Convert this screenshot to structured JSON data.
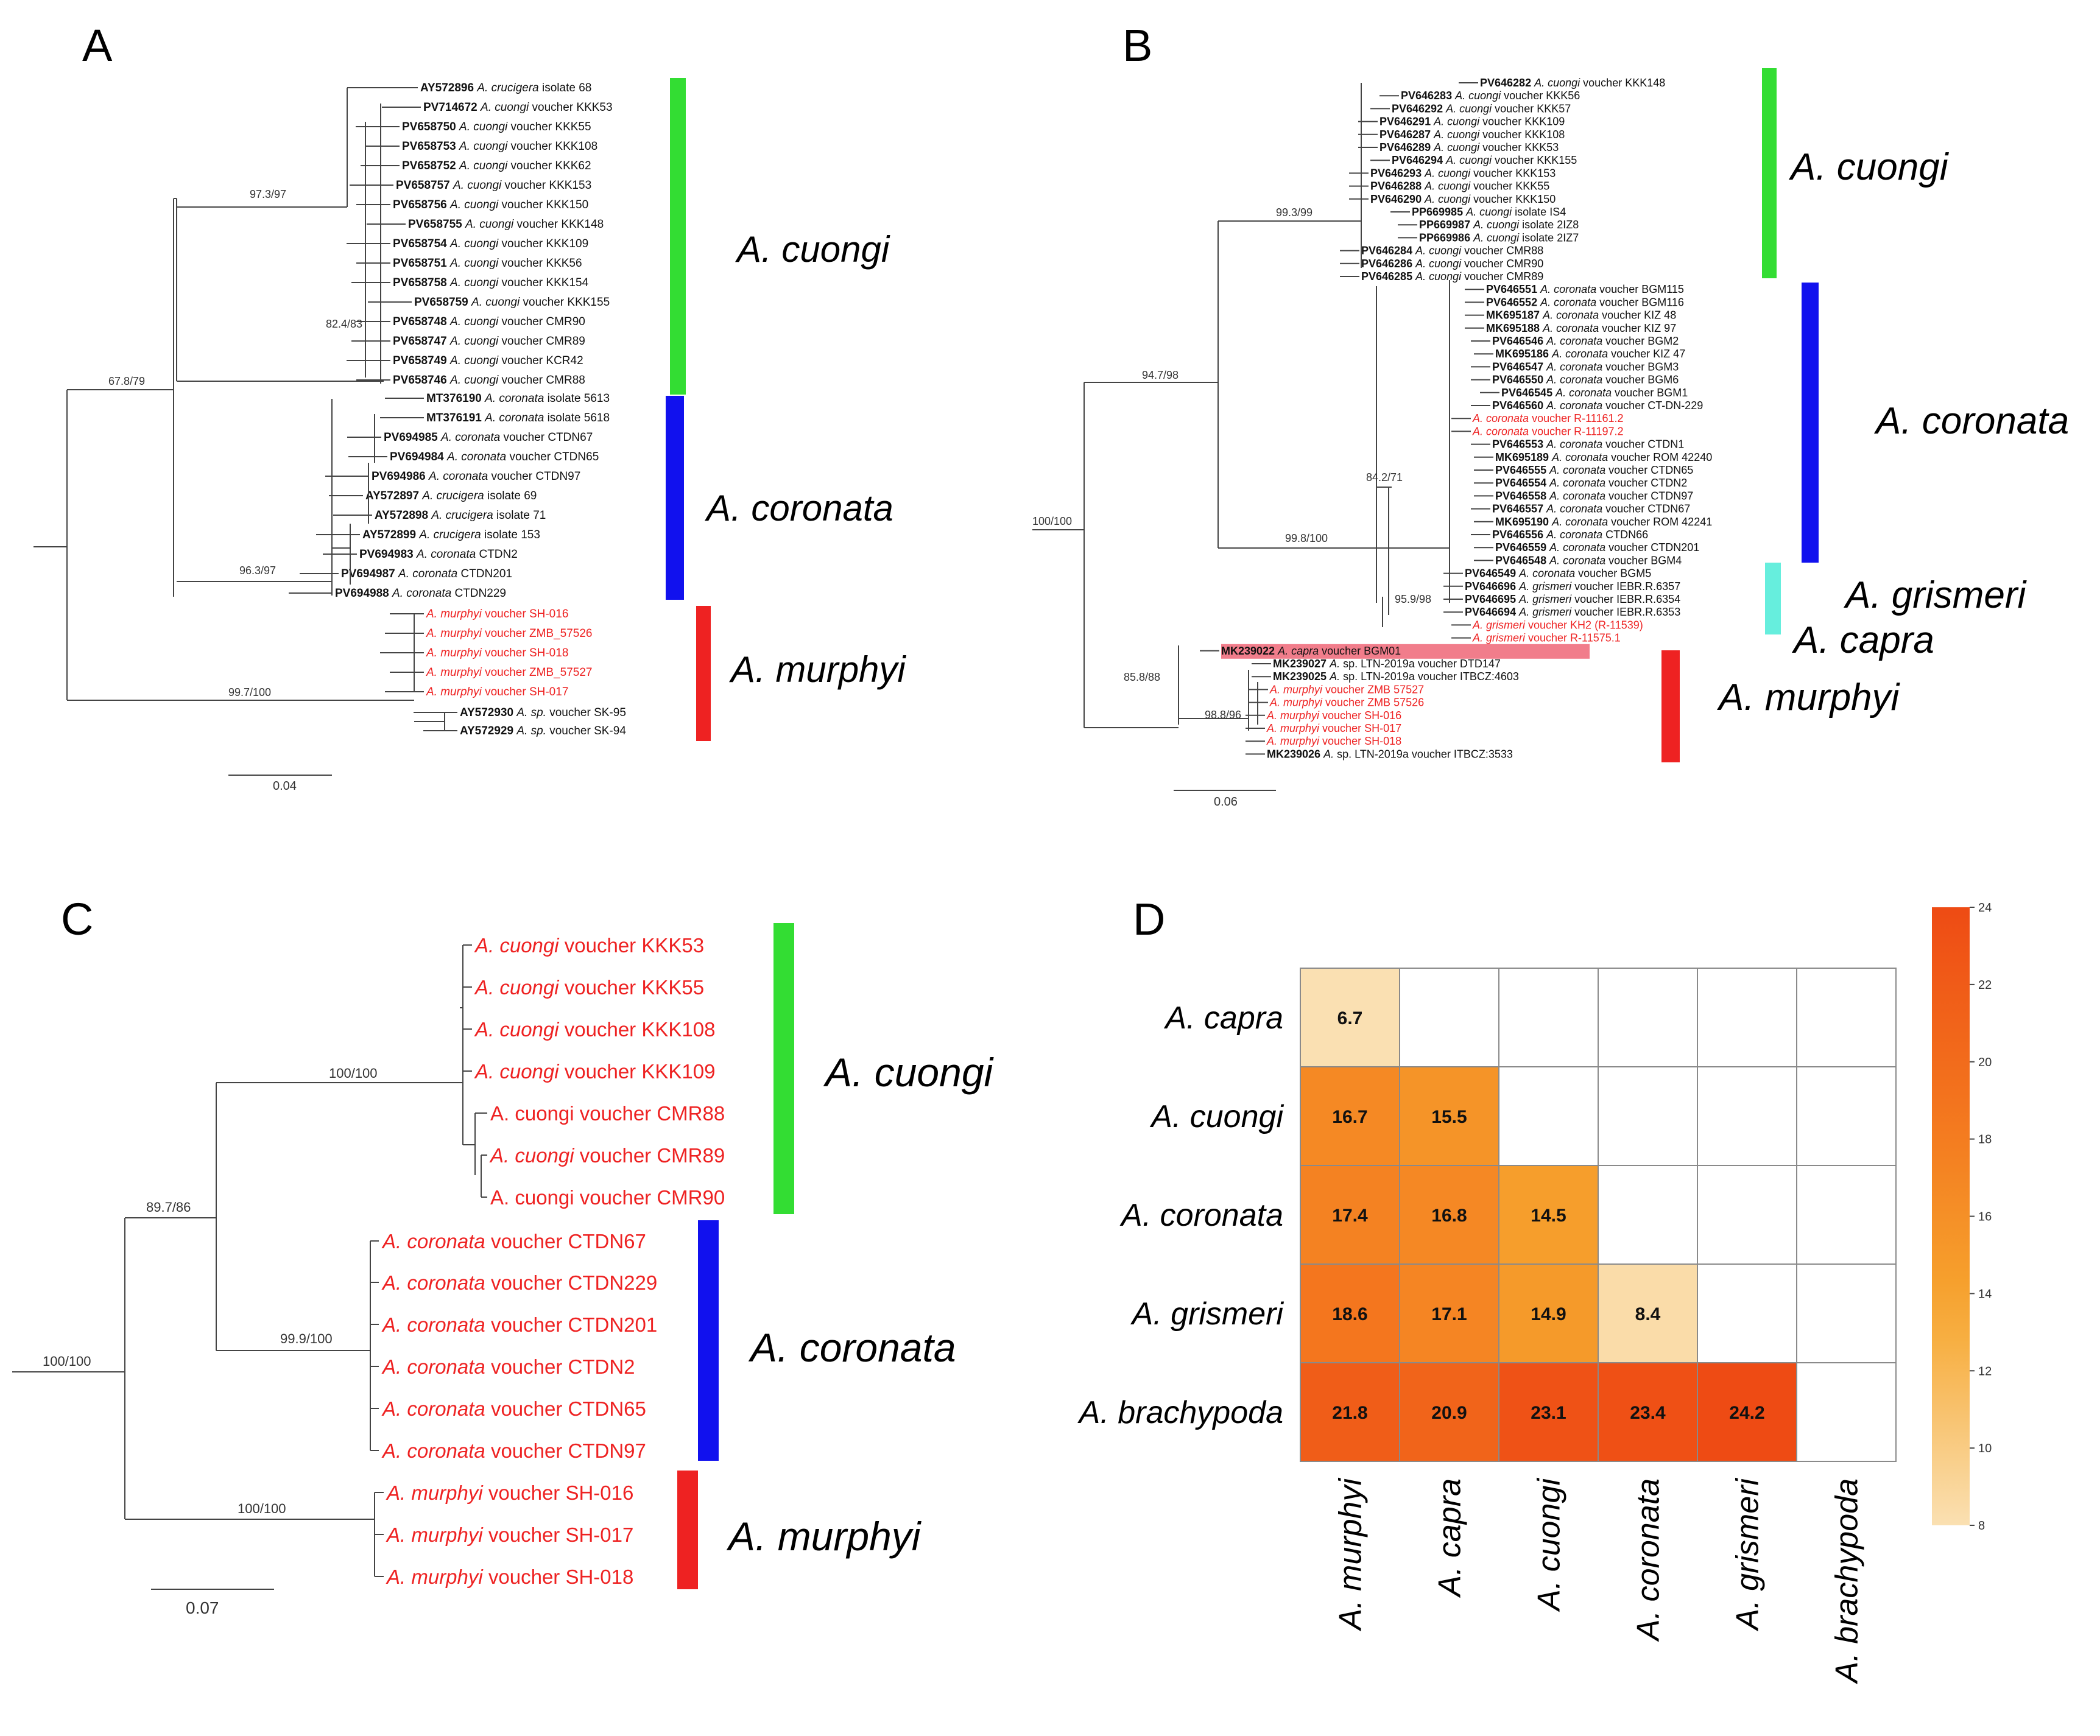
{
  "panels": {
    "A": {
      "label": "A",
      "tips": [
        {
          "acc": "AY572896",
          "sp": "A. crucigera",
          "rest": " isolate 68",
          "red": false
        },
        {
          "acc": "PV714672",
          "sp": "A. cuongi",
          "rest": " voucher KKK53",
          "red": false
        },
        {
          "acc": "PV658750",
          "sp": "A. cuongi",
          "rest": " voucher KKK55",
          "red": false
        },
        {
          "acc": "PV658753",
          "sp": "A. cuongi",
          "rest": " voucher KKK108",
          "red": false
        },
        {
          "acc": "PV658752",
          "sp": "A. cuongi",
          "rest": " voucher KKK62",
          "red": false
        },
        {
          "acc": "PV658757",
          "sp": "A. cuongi",
          "rest": " voucher KKK153",
          "red": false
        },
        {
          "acc": "PV658756",
          "sp": "A. cuongi",
          "rest": " voucher KKK150",
          "red": false
        },
        {
          "acc": "PV658755",
          "sp": "A. cuongi",
          "rest": " voucher KKK148",
          "red": false
        },
        {
          "acc": "PV658754",
          "sp": "A. cuongi",
          "rest": " voucher KKK109",
          "red": false
        },
        {
          "acc": "PV658751",
          "sp": "A. cuongi",
          "rest": " voucher KKK56",
          "red": false
        },
        {
          "acc": "PV658758",
          "sp": "A. cuongi",
          "rest": " voucher KKK154",
          "red": false
        },
        {
          "acc": "PV658759",
          "sp": "A. cuongi",
          "rest": " voucher KKK155",
          "red": false
        },
        {
          "acc": "PV658748",
          "sp": "A. cuongi",
          "rest": " voucher CMR90",
          "red": false
        },
        {
          "acc": "PV658747",
          "sp": "A. cuongi",
          "rest": " voucher CMR89",
          "red": false
        },
        {
          "acc": "PV658749",
          "sp": "A. cuongi",
          "rest": " voucher KCR42",
          "red": false
        },
        {
          "acc": "PV658746",
          "sp": "A. cuongi",
          "rest": " voucher CMR88",
          "red": false
        },
        {
          "acc": "MT376190",
          "sp": "A. coronata",
          "rest": " isolate 5613",
          "red": false
        },
        {
          "acc": "MT376191",
          "sp": "A. coronata",
          "rest": " isolate 5618",
          "red": false
        },
        {
          "acc": "PV694985",
          "sp": "A. coronata",
          "rest": " voucher CTDN67",
          "red": false
        },
        {
          "acc": "PV694984",
          "sp": "A. coronata",
          "rest": " voucher CTDN65",
          "red": false
        },
        {
          "acc": "PV694986",
          "sp": "A. coronata",
          "rest": " voucher CTDN97",
          "red": false
        },
        {
          "acc": "AY572897",
          "sp": "A. crucigera",
          "rest": " isolate 69",
          "red": false
        },
        {
          "acc": "AY572898",
          "sp": "A. crucigera",
          "rest": " isolate 71",
          "red": false
        },
        {
          "acc": "AY572899",
          "sp": "A. crucigera",
          "rest": " isolate 153",
          "red": false
        },
        {
          "acc": "PV694983",
          "sp": "A. coronata",
          "rest": " CTDN2",
          "red": false
        },
        {
          "acc": "PV694987",
          "sp": "A. coronata",
          "rest": " CTDN201",
          "red": false
        },
        {
          "acc": "PV694988",
          "sp": "A. coronata",
          "rest": " CTDN229",
          "red": false
        },
        {
          "acc": "",
          "sp": "A. murphyi",
          "rest": " voucher SH-016",
          "red": true
        },
        {
          "acc": "",
          "sp": "A. murphyi",
          "rest": " voucher ZMB_57526",
          "red": true
        },
        {
          "acc": "",
          "sp": "A. murphyi",
          "rest": " voucher SH-018",
          "red": true
        },
        {
          "acc": "",
          "sp": "A. murphyi",
          "rest": " voucher ZMB_57527",
          "red": true
        },
        {
          "acc": "",
          "sp": "A. murphyi",
          "rest": " voucher SH-017",
          "red": true
        },
        {
          "acc": "AY572930",
          "sp": "A. sp.",
          "rest": " voucher SK-95",
          "red": false
        },
        {
          "acc": "AY572929",
          "sp": "A. sp.",
          "rest": " voucher SK-94",
          "red": false
        }
      ],
      "supports": [
        "97.3/97",
        "82.4/83",
        "67.8/79",
        "96.3/97",
        "99.7/100"
      ],
      "clades": [
        "A. cuongi",
        "A. coronata",
        "A. murphyi"
      ],
      "scale": "0.04"
    },
    "B": {
      "label": "B",
      "tips": [
        {
          "acc": "PV646282",
          "sp": "A. cuongi",
          "rest": "  voucher KKK148",
          "red": false
        },
        {
          "acc": "PV646283",
          "sp": "A. cuongi",
          "rest": " voucher KKK56",
          "red": false
        },
        {
          "acc": "PV646292",
          "sp": "A. cuongi",
          "rest": " voucher KKK57",
          "red": false
        },
        {
          "acc": "PV646291",
          "sp": "A. cuongi",
          "rest": " voucher KKK109",
          "red": false
        },
        {
          "acc": "PV646287",
          "sp": "A. cuongi",
          "rest": " voucher KKK108",
          "red": false
        },
        {
          "acc": "PV646289",
          "sp": "A. cuongi",
          "rest": " voucher KKK53",
          "red": false
        },
        {
          "acc": "PV646294",
          "sp": "A. cuongi",
          "rest": " voucher KKK155",
          "red": false
        },
        {
          "acc": "PV646293",
          "sp": "A. cuongi",
          "rest": " voucher KKK153",
          "red": false
        },
        {
          "acc": "PV646288",
          "sp": "A. cuongi",
          "rest": " voucher KKK55",
          "red": false
        },
        {
          "acc": "PV646290",
          "sp": "A. cuongi",
          "rest": " voucher KKK150",
          "red": false
        },
        {
          "acc": "PP669985",
          "sp": "A. cuongi",
          "rest": " isolate IS4",
          "red": false
        },
        {
          "acc": "PP669987",
          "sp": "A. cuongi",
          "rest": " isolate 2IZ8",
          "red": false
        },
        {
          "acc": "PP669986",
          "sp": "A. cuongi",
          "rest": " isolate 2IZ7",
          "red": false
        },
        {
          "acc": "PV646284",
          "sp": "A. cuongi",
          "rest": " voucher CMR88",
          "red": false
        },
        {
          "acc": "PV646286",
          "sp": "A. cuongi",
          "rest": " voucher CMR90",
          "red": false
        },
        {
          "acc": "PV646285",
          "sp": "A. cuongi",
          "rest": " voucher CMR89",
          "red": false
        },
        {
          "acc": "PV646551",
          "sp": "A. coronata",
          "rest": " voucher BGM115",
          "red": false
        },
        {
          "acc": "PV646552",
          "sp": "A. coronata",
          "rest": " voucher BGM116",
          "red": false
        },
        {
          "acc": "MK695187",
          "sp": "A. coronata",
          "rest": " voucher KIZ 48",
          "red": false
        },
        {
          "acc": "MK695188",
          "sp": "A. coronata",
          "rest": " voucher KIZ 97",
          "red": false
        },
        {
          "acc": "PV646546",
          "sp": "A. coronata",
          "rest": " voucher BGM2",
          "red": false
        },
        {
          "acc": "MK695186",
          "sp": "A. coronata",
          "rest": " voucher KIZ 47",
          "red": false
        },
        {
          "acc": "PV646547",
          "sp": "A. coronata",
          "rest": " voucher BGM3",
          "red": false
        },
        {
          "acc": "PV646550",
          "sp": "A. coronata",
          "rest": " voucher BGM6",
          "red": false
        },
        {
          "acc": "PV646545",
          "sp": "A. coronata",
          "rest": " voucher BGM1",
          "red": false
        },
        {
          "acc": "PV646560",
          "sp": "A. coronata",
          "rest": " voucher CT-DN-229",
          "red": false
        },
        {
          "acc": "",
          "sp": "A. coronata",
          "rest": " voucher R-11161.2",
          "red": true
        },
        {
          "acc": "",
          "sp": "A. coronata",
          "rest": " voucher R-11197.2",
          "red": true
        },
        {
          "acc": "PV646553",
          "sp": "A. coronata",
          "rest": " voucher CTDN1",
          "red": false
        },
        {
          "acc": "MK695189",
          "sp": "A. coronata",
          "rest": " voucher ROM 42240",
          "red": false
        },
        {
          "acc": "PV646555",
          "sp": "A. coronata",
          "rest": " voucher CTDN65",
          "red": false
        },
        {
          "acc": "PV646554",
          "sp": "A. coronata",
          "rest": " voucher CTDN2",
          "red": false
        },
        {
          "acc": "PV646558",
          "sp": "A. coronata",
          "rest": " voucher CTDN97",
          "red": false
        },
        {
          "acc": "PV646557",
          "sp": "A. coronata",
          "rest": " voucher CTDN67",
          "red": false
        },
        {
          "acc": "MK695190",
          "sp": "A. coronata",
          "rest": " voucher ROM 42241",
          "red": false
        },
        {
          "acc": "PV646556",
          "sp": "A. coronata",
          "rest": " CTDN66",
          "red": false
        },
        {
          "acc": "PV646559",
          "sp": "A. coronata",
          "rest": " voucher CTDN201",
          "red": false
        },
        {
          "acc": "PV646548",
          "sp": "A. coronata",
          "rest": " voucher BGM4",
          "red": false
        },
        {
          "acc": "PV646549",
          "sp": "A. coronata",
          "rest": " voucher BGM5",
          "red": false
        },
        {
          "acc": "PV646696",
          "sp": "A. grismeri",
          "rest": " voucher IEBR.R.6357",
          "red": false
        },
        {
          "acc": "PV646695",
          "sp": "A. grismeri",
          "rest": " voucher IEBR.R.6354",
          "red": false
        },
        {
          "acc": "PV646694",
          "sp": "A. grismeri",
          "rest": " voucher IEBR.R.6353",
          "red": false
        },
        {
          "acc": "",
          "sp": "A. grismeri",
          "rest": " voucher KH2 (R-11539)",
          "red": true
        },
        {
          "acc": "",
          "sp": "A. grismeri",
          "rest": " voucher R-11575.1",
          "red": true
        },
        {
          "acc": "MK239022",
          "sp": "A. capra",
          "rest": " voucher BGM01",
          "red": false,
          "hl": true
        },
        {
          "acc": "MK239027",
          "sp": "A.",
          "rest": " sp. LTN-2019a voucher DTD147",
          "red": false
        },
        {
          "acc": "MK239025",
          "sp": "A.",
          "rest": " sp. LTN-2019a voucher ITBCZ:4603",
          "red": false
        },
        {
          "acc": "",
          "sp": "A. murphyi",
          "rest": " voucher ZMB 57527",
          "red": true
        },
        {
          "acc": "",
          "sp": "A. murphyi",
          "rest": " voucher ZMB 57526",
          "red": true
        },
        {
          "acc": "",
          "sp": "A. murphyi",
          "rest": " voucher SH-016",
          "red": true
        },
        {
          "acc": "",
          "sp": "A. murphyi",
          "rest": " voucher SH-017",
          "red": true
        },
        {
          "acc": "",
          "sp": "A. murphyi",
          "rest": " voucher SH-018",
          "red": true
        },
        {
          "acc": "MK239026",
          "sp": "A.",
          "rest": " sp. LTN-2019a voucher ITBCZ:3533",
          "red": false
        }
      ],
      "supports": [
        "99.3/99",
        "94.7/98",
        "100/100",
        "84.2/71",
        "99.8/100",
        "95.9/98",
        "85.8/88",
        "98.8/96"
      ],
      "clades": [
        "A. cuongi",
        "A. coronata",
        "A. grismeri",
        "A. capra",
        "A. murphyi"
      ],
      "scale": "0.06"
    },
    "C": {
      "label": "C",
      "tips": [
        {
          "sp": "A. cuongi",
          "rest": " voucher KKK53",
          "ital": true
        },
        {
          "sp": "A. cuongi",
          "rest": " voucher KKK55",
          "ital": true
        },
        {
          "sp": "A. cuongi",
          "rest": " voucher KKK108",
          "ital": true
        },
        {
          "sp": "A. cuongi",
          "rest": " voucher KKK109",
          "ital": true
        },
        {
          "sp": "A. cuongi",
          "rest": " voucher CMR88",
          "ital": false
        },
        {
          "sp": "A. cuongi",
          "rest": " voucher CMR89",
          "ital": true
        },
        {
          "sp": "A. cuongi",
          "rest": " voucher CMR90",
          "ital": false
        },
        {
          "sp": "A. coronata",
          "rest": " voucher CTDN67",
          "ital": true
        },
        {
          "sp": "A. coronata",
          "rest": " voucher CTDN229",
          "ital": true
        },
        {
          "sp": "A. coronata",
          "rest": " voucher CTDN201",
          "ital": true
        },
        {
          "sp": "A. coronata",
          "rest": " voucher CTDN2",
          "ital": true
        },
        {
          "sp": "A. coronata",
          "rest": " voucher CTDN65",
          "ital": true
        },
        {
          "sp": "A. coronata",
          "rest": " voucher CTDN97",
          "ital": true
        },
        {
          "sp": "A. murphyi",
          "rest": " voucher SH-016",
          "ital": true
        },
        {
          "sp": "A. murphyi",
          "rest": " voucher SH-017",
          "ital": true
        },
        {
          "sp": "A. murphyi",
          "rest": " voucher SH-018",
          "ital": true
        }
      ],
      "supports": [
        "100/100",
        "89.7/86",
        "99.9/100",
        "100/100",
        "100/100"
      ],
      "clades": [
        "A. cuongi",
        "A. coronata",
        "A. murphyi"
      ],
      "scale": "0.07"
    },
    "D": {
      "label": "D",
      "rows": [
        "A. capra",
        "A. cuongi",
        "A. coronata",
        "A. grismeri",
        "A. brachypoda"
      ],
      "cols": [
        "A. murphyi",
        "A. capra",
        "A. cuongi",
        "A. coronata",
        "A. grismeri",
        "A. brachypoda"
      ],
      "colorbar_ticks": [
        "24",
        "22",
        "20",
        "18",
        "16",
        "14",
        "12",
        "10",
        "8"
      ]
    }
  },
  "colors": {
    "cuongi": "#33dd33",
    "coronata": "#1111ee",
    "murphyi": "#ee2222",
    "grismeri": "#66eedd",
    "red_text": "#ee2222",
    "capra_highlight": "#ee6677"
  },
  "chart_data": {
    "type": "heatmap",
    "rows": [
      "A. capra",
      "A. cuongi",
      "A. coronata",
      "A. grismeri",
      "A. brachypoda"
    ],
    "cols": [
      "A. murphyi",
      "A. capra",
      "A. cuongi",
      "A. coronata",
      "A. grismeri",
      "A. brachypoda"
    ],
    "values": [
      [
        6.7,
        null,
        null,
        null,
        null,
        null
      ],
      [
        16.7,
        15.5,
        null,
        null,
        null,
        null
      ],
      [
        17.4,
        16.8,
        14.5,
        null,
        null,
        null
      ],
      [
        18.6,
        17.1,
        14.9,
        8.4,
        null,
        null
      ],
      [
        21.8,
        20.9,
        23.1,
        23.4,
        24.2,
        null
      ]
    ],
    "colorbar_range": [
      8,
      24
    ],
    "colorbar_ticks": [
      24,
      22,
      20,
      18,
      16,
      14,
      12,
      10,
      8
    ],
    "colormap": "light peach (8) to orange-red (24)"
  }
}
